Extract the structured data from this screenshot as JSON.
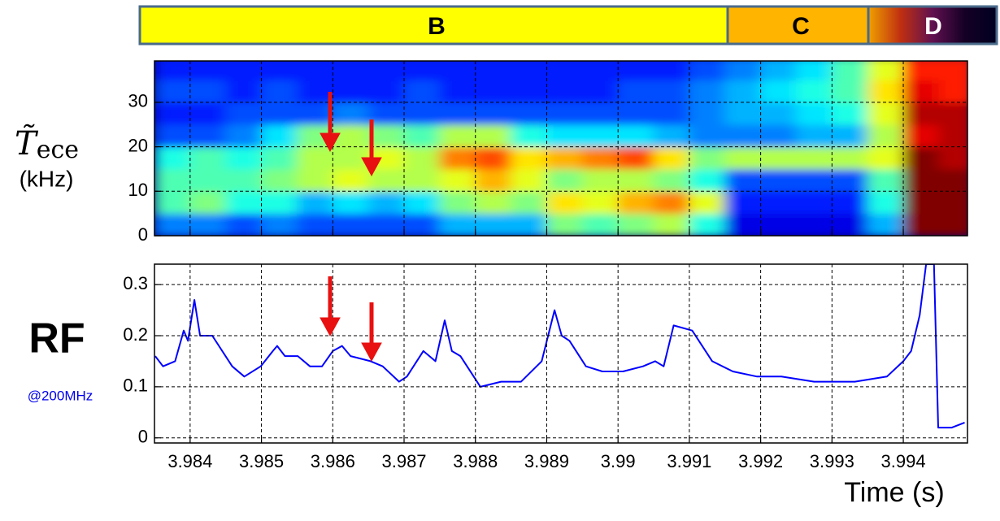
{
  "chart_data": [
    {
      "type": "heatmap",
      "phases": [
        "B",
        "C",
        "D"
      ],
      "ylabel_symbol": "T̃",
      "ylabel_subscript": "ece",
      "ylabel_unit": "(kHz)",
      "colormap": "jet",
      "x_edges": [
        3.9835,
        3.984,
        3.9845,
        3.985,
        3.9855,
        3.986,
        3.9865,
        3.987,
        3.9875,
        3.988,
        3.9885,
        3.989,
        3.9895,
        3.99,
        3.9905,
        3.991,
        3.9915,
        3.992,
        3.9925,
        3.993,
        3.9935,
        3.994,
        3.9945,
        3.995
      ],
      "y_edges": [
        0,
        5,
        10,
        15,
        20,
        25,
        30,
        35,
        40
      ],
      "z": [
        [
          0.25,
          0.25,
          0.2,
          0.25,
          0.2,
          0.2,
          0.2,
          0.2,
          0.3,
          0.3,
          0.3,
          0.5,
          0.45,
          0.5,
          0.55,
          0.4,
          0.1,
          0.1,
          0.1,
          0.1,
          0.3,
          1,
          1
        ],
        [
          0.45,
          0.5,
          0.4,
          0.4,
          0.3,
          0.35,
          0.3,
          0.35,
          0.5,
          0.55,
          0.5,
          0.65,
          0.6,
          0.7,
          0.75,
          0.6,
          0.15,
          0.15,
          0.15,
          0.15,
          0.4,
          1,
          1
        ],
        [
          0.45,
          0.45,
          0.45,
          0.5,
          0.55,
          0.6,
          0.55,
          0.55,
          0.6,
          0.7,
          0.6,
          0.5,
          0.55,
          0.55,
          0.5,
          0.4,
          0.2,
          0.2,
          0.2,
          0.2,
          0.45,
          1,
          1
        ],
        [
          0.4,
          0.45,
          0.4,
          0.45,
          0.55,
          0.55,
          0.6,
          0.55,
          0.75,
          0.8,
          0.65,
          0.7,
          0.75,
          0.8,
          0.65,
          0.5,
          0.55,
          0.55,
          0.55,
          0.55,
          0.6,
          1,
          0.95
        ],
        [
          0.2,
          0.2,
          0.25,
          0.35,
          0.5,
          0.55,
          0.5,
          0.45,
          0.55,
          0.55,
          0.4,
          0.35,
          0.35,
          0.35,
          0.3,
          0.25,
          0.25,
          0.25,
          0.3,
          0.3,
          0.55,
          0.9,
          0.95
        ],
        [
          0.15,
          0.15,
          0.2,
          0.2,
          0.2,
          0.25,
          0.2,
          0.2,
          0.2,
          0.2,
          0.2,
          0.2,
          0.2,
          0.2,
          0.2,
          0.25,
          0.3,
          0.3,
          0.35,
          0.4,
          0.6,
          0.95,
          0.95
        ],
        [
          0.2,
          0.2,
          0.15,
          0.2,
          0.15,
          0.15,
          0.15,
          0.2,
          0.15,
          0.15,
          0.15,
          0.15,
          0.15,
          0.2,
          0.2,
          0.25,
          0.3,
          0.35,
          0.4,
          0.45,
          0.65,
          0.9,
          0.85
        ],
        [
          0.15,
          0.15,
          0.15,
          0.15,
          0.15,
          0.15,
          0.15,
          0.15,
          0.15,
          0.15,
          0.15,
          0.15,
          0.15,
          0.15,
          0.15,
          0.2,
          0.25,
          0.3,
          0.35,
          0.45,
          0.6,
          0.85,
          0.85
        ]
      ],
      "xlim": [
        3.9835,
        3.9949
      ],
      "ylim": [
        0,
        39.3
      ],
      "xticks": [
        3.984,
        3.985,
        3.986,
        3.987,
        3.988,
        3.989,
        3.99,
        3.991,
        3.992,
        3.993,
        3.994
      ],
      "yticks": [
        0,
        10,
        20,
        30
      ],
      "grid": true
    },
    {
      "type": "line",
      "ylabel": "RF",
      "ylabel_note": "@200MHz",
      "xlabel": "Time (s)",
      "color": "#0000ff",
      "x": [
        3.98351,
        3.98362,
        3.98379,
        3.98391,
        3.98397,
        3.98406,
        3.98414,
        3.98431,
        3.98459,
        3.98476,
        3.98499,
        3.98516,
        3.98522,
        3.98533,
        3.98551,
        3.98568,
        3.98585,
        3.986,
        3.98613,
        3.98625,
        3.98653,
        3.9867,
        3.98693,
        3.98704,
        3.98727,
        3.98744,
        3.98757,
        3.98767,
        3.98779,
        3.98807,
        3.98836,
        3.98864,
        3.98893,
        3.98911,
        3.98921,
        3.98932,
        3.98955,
        3.98978,
        3.99007,
        3.99035,
        3.99052,
        3.99064,
        3.99078,
        3.99104,
        3.99132,
        3.99161,
        3.99195,
        3.99229,
        3.99275,
        3.99332,
        3.99377,
        3.994,
        3.99411,
        3.99423,
        3.99432,
        3.99443,
        3.99449,
        3.99468,
        3.99486
      ],
      "values": [
        0.16,
        0.14,
        0.15,
        0.21,
        0.19,
        0.27,
        0.2,
        0.2,
        0.14,
        0.12,
        0.14,
        0.17,
        0.18,
        0.16,
        0.16,
        0.14,
        0.14,
        0.17,
        0.18,
        0.16,
        0.15,
        0.14,
        0.11,
        0.12,
        0.17,
        0.15,
        0.23,
        0.17,
        0.16,
        0.1,
        0.11,
        0.11,
        0.15,
        0.25,
        0.2,
        0.19,
        0.14,
        0.13,
        0.13,
        0.14,
        0.15,
        0.14,
        0.22,
        0.21,
        0.15,
        0.13,
        0.12,
        0.12,
        0.11,
        0.11,
        0.12,
        0.15,
        0.17,
        0.24,
        0.34,
        0.34,
        0.02,
        0.02,
        0.03
      ],
      "xlim": [
        3.9835,
        3.9949
      ],
      "ylim": [
        -0.01,
        0.34
      ],
      "xticks": [
        3.984,
        3.985,
        3.986,
        3.987,
        3.988,
        3.989,
        3.99,
        3.991,
        3.992,
        3.993,
        3.994
      ],
      "yticks": [
        0,
        0.1,
        0.2,
        0.3
      ],
      "grid": true
    }
  ]
}
